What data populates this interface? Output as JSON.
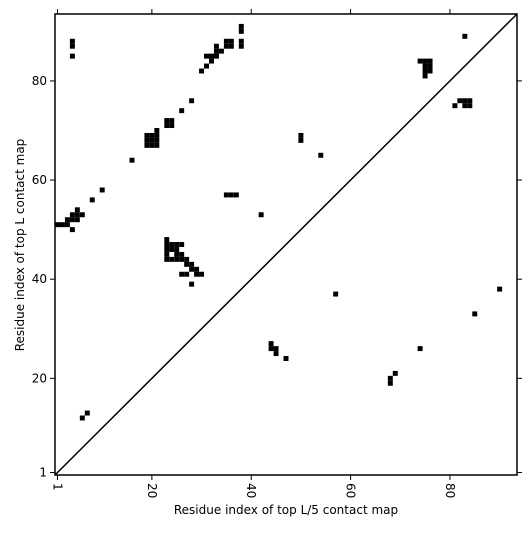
{
  "chart_data": {
    "type": "scatter",
    "xlabel": "Residue index of top L/5 contact map",
    "ylabel": "Residue index of top L contact map",
    "xlim": [
      0.5,
      93.5
    ],
    "ylim": [
      0.5,
      93.5
    ],
    "xticks": [
      1,
      20,
      40,
      60,
      80
    ],
    "yticks": [
      1,
      20,
      40,
      60,
      80
    ],
    "color": "#000000",
    "x": [
      4,
      4,
      4,
      1,
      2,
      3,
      3,
      4,
      4,
      5,
      6,
      5,
      4,
      5,
      8,
      10,
      16,
      19,
      20,
      21,
      19,
      20,
      21,
      19,
      20,
      21,
      21,
      23,
      24,
      23,
      24,
      26,
      28,
      30,
      31,
      32,
      31,
      32,
      33,
      33,
      34,
      33,
      35,
      36,
      35,
      36,
      38,
      38,
      38,
      38,
      35,
      36,
      37,
      42,
      50,
      50,
      54,
      57,
      23,
      23,
      24,
      25,
      26,
      23,
      24,
      25,
      23,
      25,
      26,
      23,
      24,
      25,
      26,
      27,
      27,
      28,
      28,
      29,
      29,
      30,
      26,
      27,
      28,
      44,
      44,
      45,
      45,
      47,
      68,
      68,
      69,
      74,
      85,
      90,
      74,
      75,
      76,
      75,
      76,
      75,
      76,
      75,
      83,
      81,
      82,
      83,
      84,
      83,
      84,
      6,
      7
    ],
    "y": [
      85,
      87,
      88,
      51,
      51,
      51,
      52,
      52,
      53,
      53,
      53,
      54,
      50,
      52,
      56,
      58,
      64,
      67,
      67,
      67,
      68,
      68,
      68,
      69,
      69,
      69,
      70,
      71,
      71,
      72,
      72,
      74,
      76,
      82,
      83,
      84,
      85,
      85,
      85,
      86,
      86,
      87,
      87,
      87,
      88,
      88,
      90,
      91,
      87,
      88,
      57,
      57,
      57,
      53,
      68,
      69,
      65,
      37,
      48,
      47,
      47,
      47,
      47,
      46,
      46,
      46,
      45,
      45,
      45,
      44,
      44,
      44,
      44,
      44,
      43,
      43,
      42,
      42,
      41,
      41,
      41,
      41,
      39,
      26,
      27,
      25,
      26,
      24,
      19,
      20,
      21,
      26,
      33,
      38,
      84,
      84,
      84,
      83,
      83,
      82,
      82,
      81,
      89,
      75,
      76,
      75,
      75,
      76,
      76,
      12,
      13
    ]
  }
}
